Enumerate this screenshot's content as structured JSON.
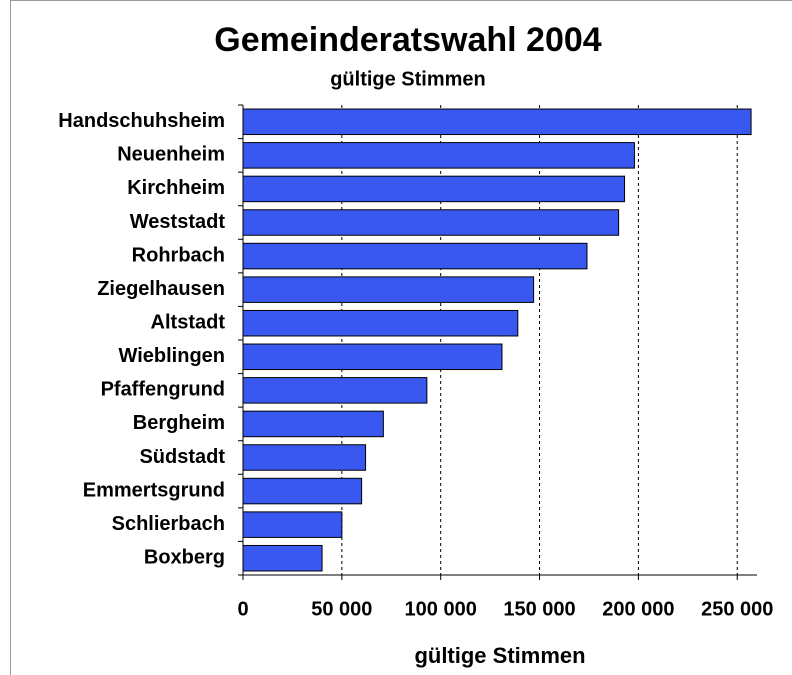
{
  "chart_data": {
    "type": "hbar",
    "title": "Gemeinderatswahl 2004",
    "subtitle": "gültige Stimmen",
    "x_label": "gültige Stimmen",
    "categories": [
      "Handschuhsheim",
      "Neuenheim",
      "Kirchheim",
      "Weststadt",
      "Rohrbach",
      "Ziegelhausen",
      "Altstadt",
      "Wieblingen",
      "Pfaffengrund",
      "Bergheim",
      "Südstadt",
      "Emmertsgrund",
      "Schlierbach",
      "Boxberg"
    ],
    "values": [
      257000,
      198000,
      193000,
      190000,
      174000,
      147000,
      139000,
      131000,
      93000,
      71000,
      62000,
      60000,
      50000,
      40000
    ],
    "color": "#3858f0",
    "xlim": [
      0,
      260000
    ],
    "xticks": [
      0,
      {
        "value": 50000,
        "label": "50 000"
      },
      {
        "value": 100000,
        "label": "100 000"
      },
      {
        "value": 150000,
        "label": "150 000"
      },
      {
        "value": 200000,
        "label": "200 000"
      },
      {
        "value": 250000,
        "label": "250 000"
      }
    ],
    "grid": true
  }
}
